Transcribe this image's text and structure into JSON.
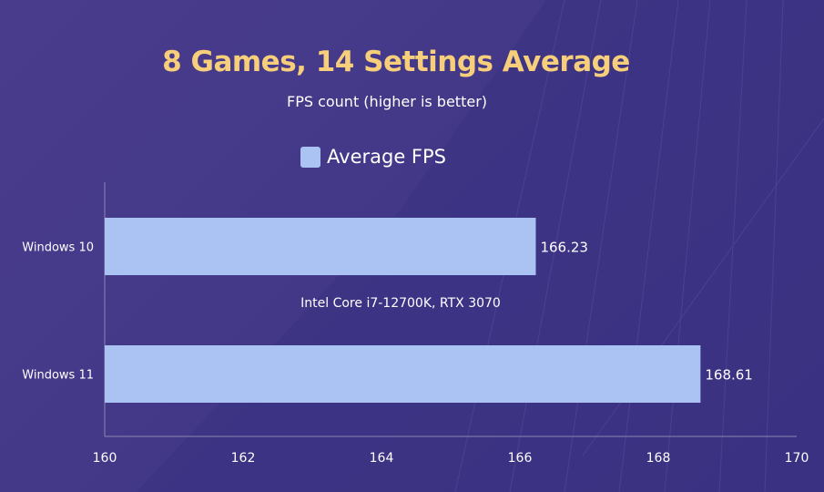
{
  "chart_data": {
    "type": "bar",
    "orientation": "horizontal",
    "title": "8 Games, 14 Settings Average",
    "subtitle": "FPS count (higher is better)",
    "annotation": "Intel Core i7-12700K, RTX 3070",
    "categories": [
      "Windows 10",
      "Windows 11"
    ],
    "series": [
      {
        "name": "Average FPS",
        "values": [
          166.23,
          168.61
        ],
        "color": "#abc3f3"
      }
    ],
    "xlim": [
      160,
      170
    ],
    "xticks": [
      160,
      162,
      164,
      166,
      168,
      170
    ],
    "legend": "top-center",
    "grid": false
  },
  "colors": {
    "title": "#f7cf7b",
    "background": "#453a8a",
    "bar": "#abc3f3"
  }
}
